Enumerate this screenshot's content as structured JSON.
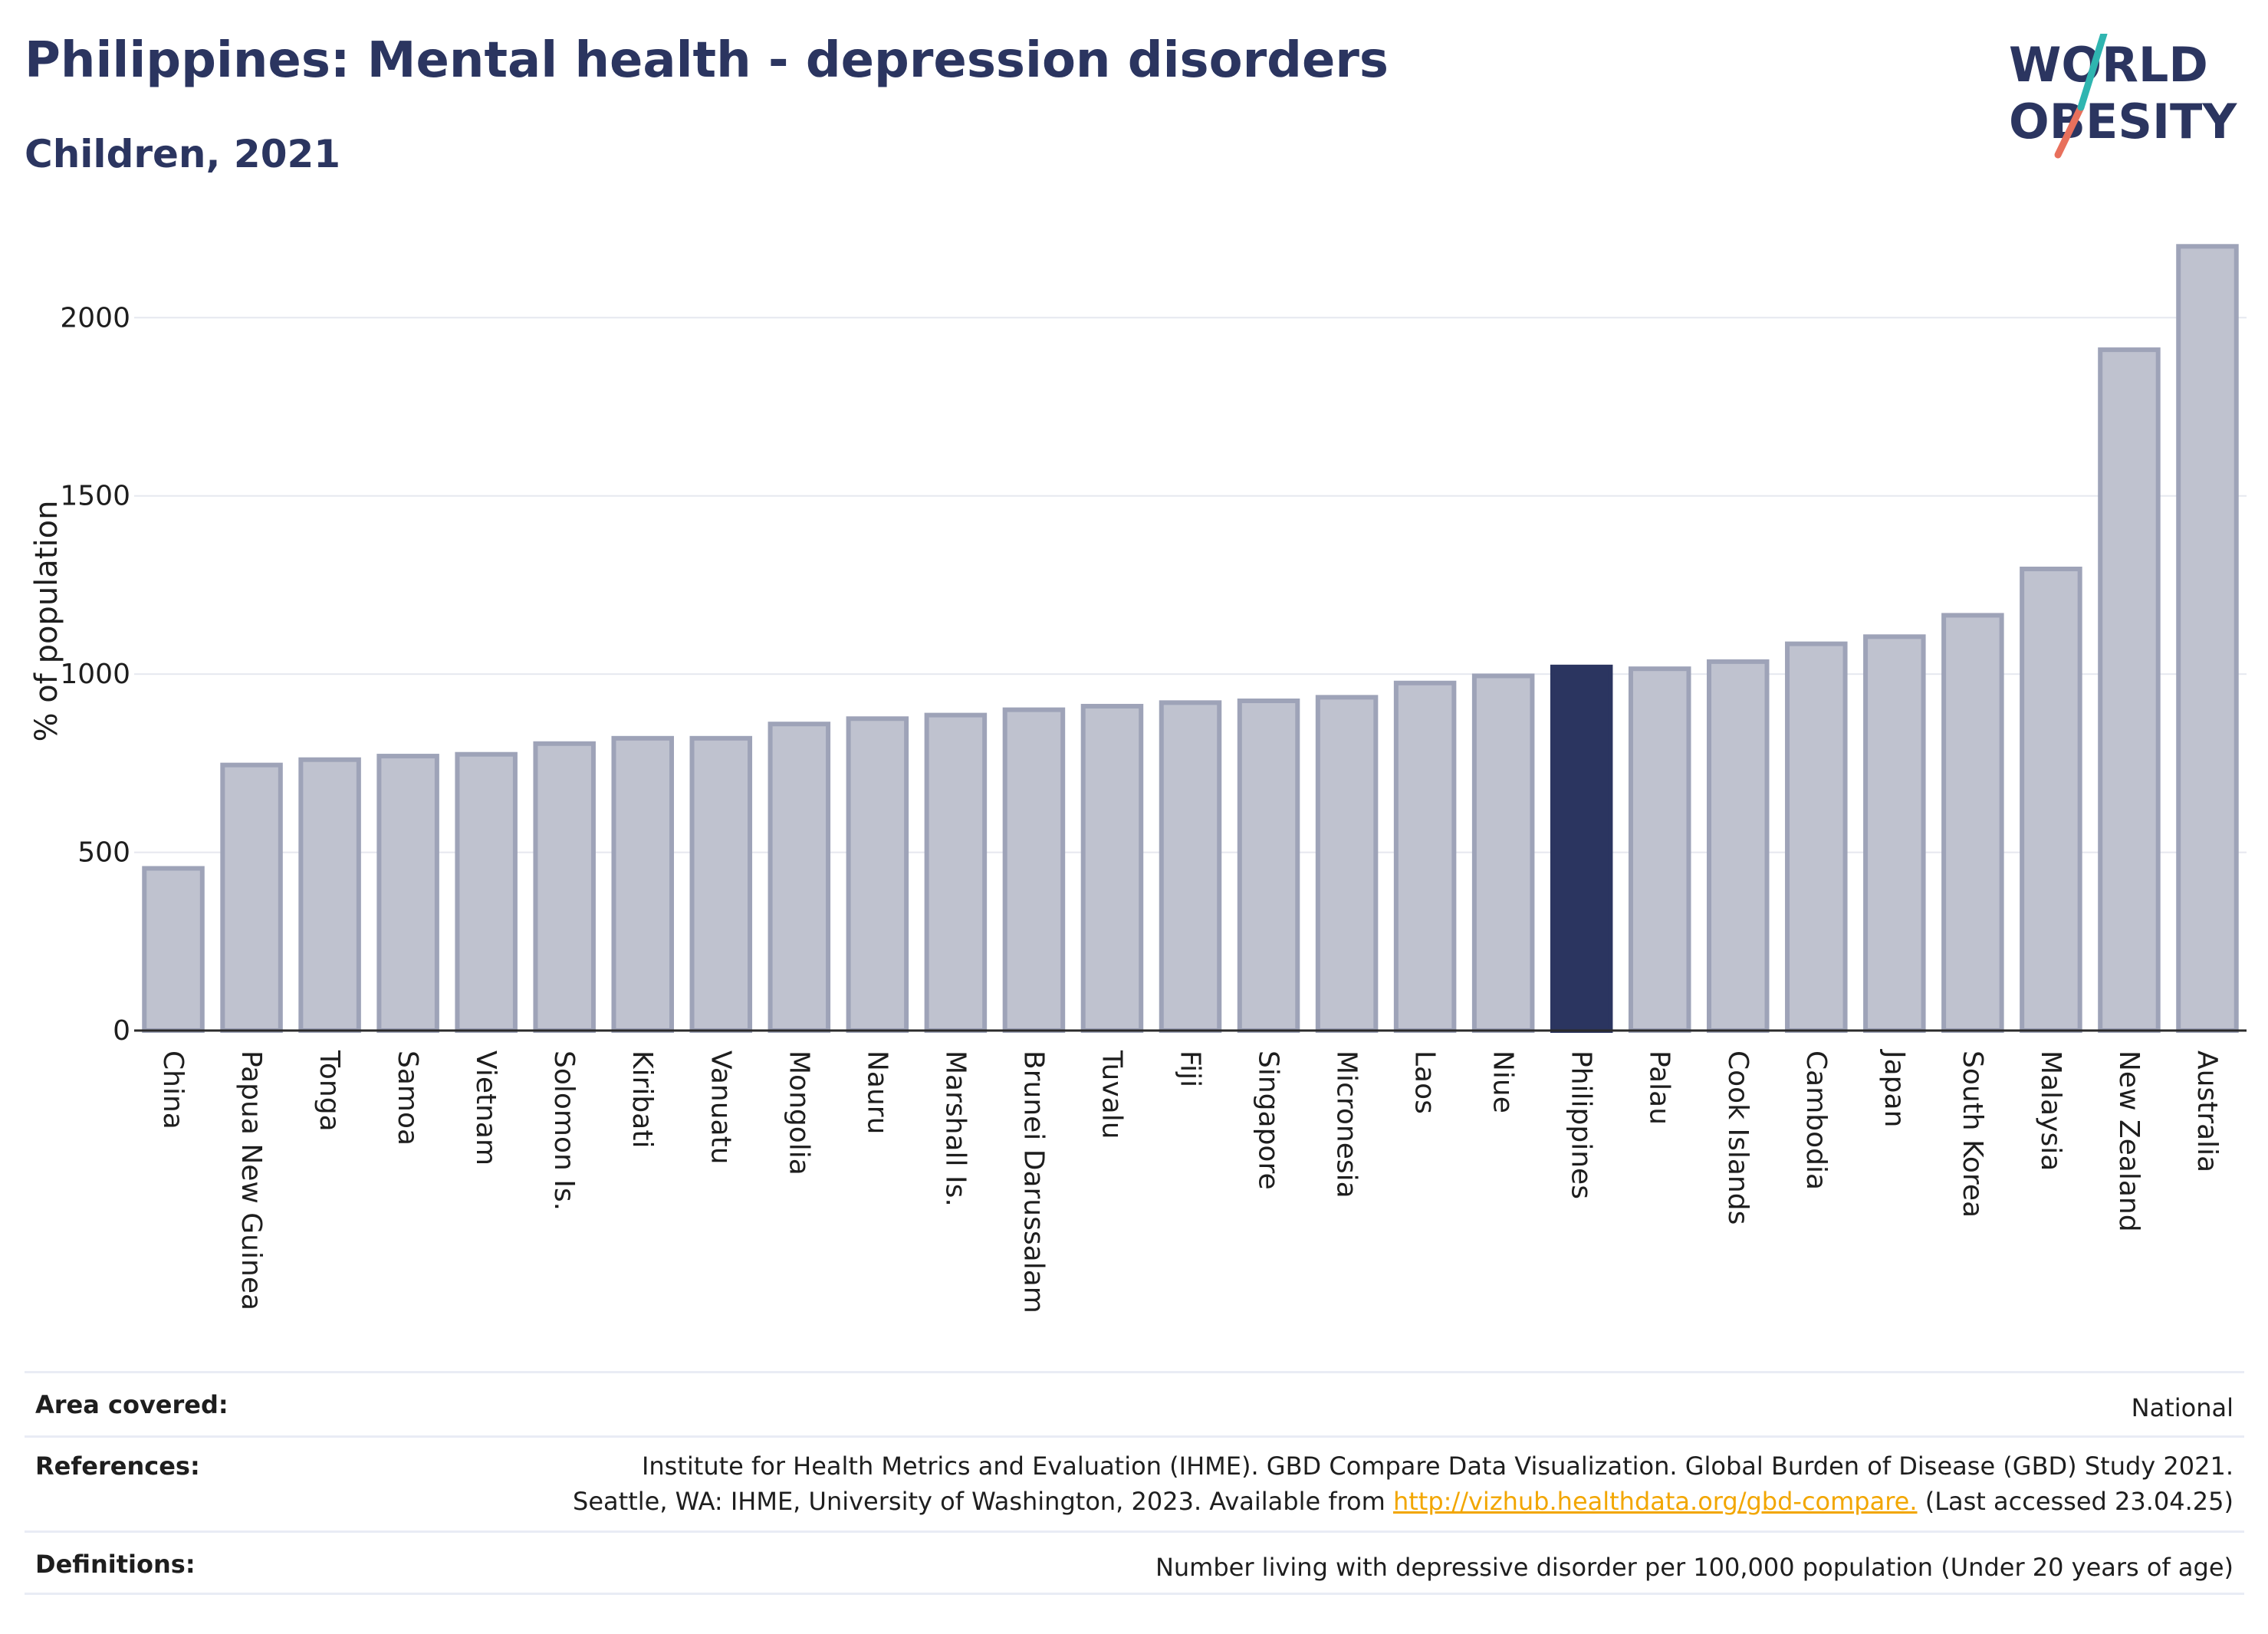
{
  "header": {
    "title": "Philippines: Mental health - depression disorders",
    "subtitle": "Children, 2021"
  },
  "logo": {
    "line1": "WORLD",
    "line2": "OBESITY"
  },
  "colors": {
    "highlight": "#2b3560",
    "bar_fill": "#bfc2cf",
    "bar_stroke": "#9ea3b8",
    "accent_link": "#f2a600"
  },
  "chart_data": {
    "type": "bar",
    "ylabel": "% of population",
    "ylim": [
      0,
      2220
    ],
    "yticks": [
      0,
      500,
      1000,
      1500,
      2000
    ],
    "grid": true,
    "highlight": "Philippines",
    "categories": [
      "China",
      "Papua New Guinea",
      "Tonga",
      "Samoa",
      "Vietnam",
      "Solomon Is.",
      "Kiribati",
      "Vanuatu",
      "Mongolia",
      "Nauru",
      "Marshall Is.",
      "Brunei Darussalam",
      "Tuvalu",
      "Fiji",
      "Singapore",
      "Micronesia",
      "Laos",
      "Niue",
      "Philippines",
      "Palau",
      "Cook Islands",
      "Cambodia",
      "Japan",
      "South Korea",
      "Malaysia",
      "New Zealand",
      "Australia"
    ],
    "values": [
      455,
      745,
      760,
      770,
      775,
      805,
      820,
      820,
      860,
      875,
      885,
      900,
      910,
      920,
      925,
      935,
      975,
      995,
      1020,
      1015,
      1035,
      1085,
      1105,
      1165,
      1295,
      1910,
      2200
    ]
  },
  "footer": {
    "area_label": "Area covered:",
    "area_value": "National",
    "references_label": "References:",
    "references_line1": "Institute for Health Metrics and Evaluation (IHME). GBD Compare Data Visualization. Global Burden of Disease (GBD) Study 2021.",
    "references_line2_pre": "Seattle, WA: IHME, University of Washington, 2023. Available from ",
    "references_link": "http://vizhub.healthdata.org/gbd-compare.",
    "references_line2_post": " (Last accessed 23.04.25)",
    "definitions_label": "Definitions:",
    "definitions_value": "Number living with depressive disorder per 100,000 population (Under 20 years of age)"
  }
}
